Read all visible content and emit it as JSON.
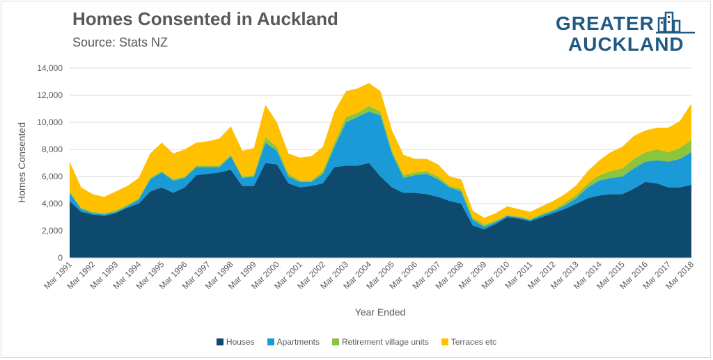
{
  "header": {
    "title": "Homes Consented in Auckland",
    "subtitle": "Source: Stats NZ"
  },
  "logo": {
    "line1": "GREATER",
    "line2": "AUCKLAND"
  },
  "colors": {
    "houses": "#0e4a6e",
    "apartments": "#1a9bd7",
    "retirement": "#8cc43e",
    "terraces": "#ffc000",
    "gridline": "#d9d9d9",
    "text": "#595959"
  },
  "chart_data": {
    "type": "area",
    "stacked": true,
    "xlabel": "Year Ended",
    "ylabel": "Homes Consented",
    "ylim": [
      0,
      14000
    ],
    "yticks": [
      0,
      2000,
      4000,
      6000,
      8000,
      10000,
      12000,
      14000
    ],
    "ytick_labels": [
      "0",
      "2,000",
      "4,000",
      "6,000",
      "8,000",
      "10,000",
      "12,000",
      "14,000"
    ],
    "grid": true,
    "legend_position": "bottom",
    "x_tick_labels": [
      "Mar 1991",
      "Mar 1992",
      "Mar 1993",
      "Mar 1994",
      "Mar 1995",
      "Mar 1996",
      "Mar 1997",
      "Mar 1998",
      "Mar 1999",
      "Mar 2000",
      "Mar 2001",
      "Mar 2002",
      "Mar 2003",
      "Mar 2004",
      "Mar 2005",
      "Mar 2006",
      "Mar 2007",
      "Mar 2008",
      "Mar 2009",
      "Mar 2010",
      "Mar 2011",
      "Mar 2012",
      "Mar 2013",
      "Mar 2014",
      "Mar 2015",
      "Mar 2016",
      "Mar 2017",
      "Mar 2018"
    ],
    "x": [
      1991.0,
      1991.5,
      1992.0,
      1992.5,
      1993.0,
      1993.5,
      1994.0,
      1994.5,
      1995.0,
      1995.5,
      1996.0,
      1996.5,
      1997.0,
      1997.5,
      1998.0,
      1998.5,
      1999.0,
      1999.5,
      2000.0,
      2000.5,
      2001.0,
      2001.5,
      2002.0,
      2002.5,
      2003.0,
      2003.5,
      2004.0,
      2004.5,
      2005.0,
      2005.5,
      2006.0,
      2006.5,
      2007.0,
      2007.5,
      2008.0,
      2008.5,
      2009.0,
      2009.5,
      2010.0,
      2010.5,
      2011.0,
      2011.5,
      2012.0,
      2012.5,
      2013.0,
      2013.5,
      2014.0,
      2014.5,
      2015.0,
      2015.5,
      2016.0,
      2016.5,
      2017.0,
      2017.5,
      2018.0
    ],
    "series": [
      {
        "name": "Houses",
        "color_key": "houses",
        "values": [
          4200,
          3400,
          3200,
          3100,
          3300,
          3700,
          4000,
          4900,
          5200,
          4800,
          5200,
          6100,
          6200,
          6300,
          6500,
          5300,
          5300,
          7000,
          6900,
          5500,
          5200,
          5300,
          5500,
          6700,
          6800,
          6800,
          7000,
          6000,
          5200,
          4800,
          4800,
          4700,
          4500,
          4200,
          4000,
          2400,
          2100,
          2500,
          3000,
          2900,
          2700,
          3000,
          3300,
          3600,
          4000,
          4400,
          4600,
          4700,
          4700,
          5100,
          5600,
          5500,
          5200,
          5200,
          5400
        ]
      },
      {
        "name": "Apartments",
        "color_key": "apartments",
        "values": [
          600,
          200,
          100,
          100,
          100,
          100,
          300,
          900,
          1100,
          900,
          700,
          600,
          500,
          400,
          1000,
          600,
          700,
          1500,
          1000,
          500,
          400,
          300,
          700,
          1500,
          3200,
          3600,
          3800,
          4500,
          2500,
          1100,
          1300,
          1500,
          1300,
          1000,
          900,
          400,
          200,
          150,
          100,
          100,
          100,
          150,
          150,
          250,
          400,
          800,
          1100,
          1200,
          1300,
          1500,
          1500,
          1700,
          1900,
          2100,
          2400
        ]
      },
      {
        "name": "Retirement village units",
        "color_key": "retirement",
        "values": [
          100,
          100,
          100,
          100,
          100,
          100,
          100,
          100,
          100,
          100,
          100,
          100,
          100,
          100,
          100,
          100,
          100,
          400,
          300,
          200,
          100,
          100,
          200,
          300,
          400,
          300,
          400,
          300,
          200,
          200,
          200,
          200,
          200,
          100,
          200,
          200,
          150,
          100,
          50,
          50,
          50,
          100,
          100,
          200,
          250,
          300,
          400,
          500,
          600,
          700,
          700,
          800,
          700,
          800,
          900
        ]
      },
      {
        "name": "Terraces etc",
        "color_key": "terraces",
        "values": [
          2200,
          1500,
          1300,
          1200,
          1400,
          1400,
          1500,
          1800,
          2100,
          1900,
          2000,
          1700,
          1800,
          2000,
          2100,
          1900,
          2000,
          2400,
          1800,
          1500,
          1700,
          1800,
          1800,
          2300,
          1900,
          1800,
          1700,
          1500,
          1500,
          1500,
          1000,
          900,
          900,
          700,
          700,
          500,
          500,
          550,
          650,
          550,
          550,
          550,
          650,
          650,
          700,
          900,
          1100,
          1400,
          1600,
          1700,
          1600,
          1600,
          1800,
          2000,
          2700
        ]
      }
    ]
  }
}
